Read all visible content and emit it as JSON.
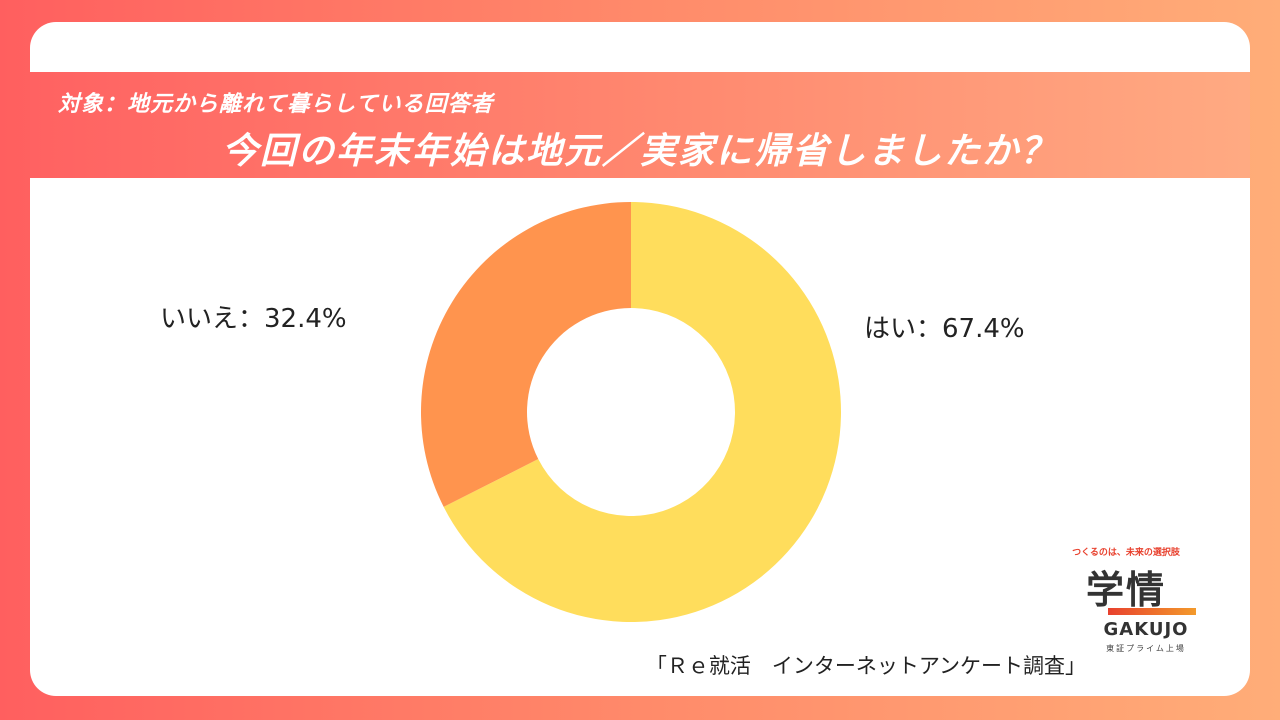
{
  "header": {
    "subtitle": "対象：地元から離れて暮らしている回答者",
    "title": "今回の年末年始は地元／実家に帰省しましたか？"
  },
  "chart_data": {
    "type": "pie",
    "style": "donut",
    "start_angle_deg": 0,
    "direction": "clockwise",
    "slices": [
      {
        "label": "はい：67.4%",
        "value": 67.4,
        "color": "#ffdd5c"
      },
      {
        "label": "いいえ：32.4%",
        "value": 32.4,
        "color": "#ff944e"
      }
    ]
  },
  "source": "「Ｒｅ就活　インターネットアンケート調査」",
  "logo": {
    "tagline": "つくるのは、未来の選択肢",
    "mark": "学情",
    "brand": "GAKUJO",
    "market": "東証プライム上場",
    "colors": [
      "#e8412e",
      "#f39a2b"
    ]
  }
}
